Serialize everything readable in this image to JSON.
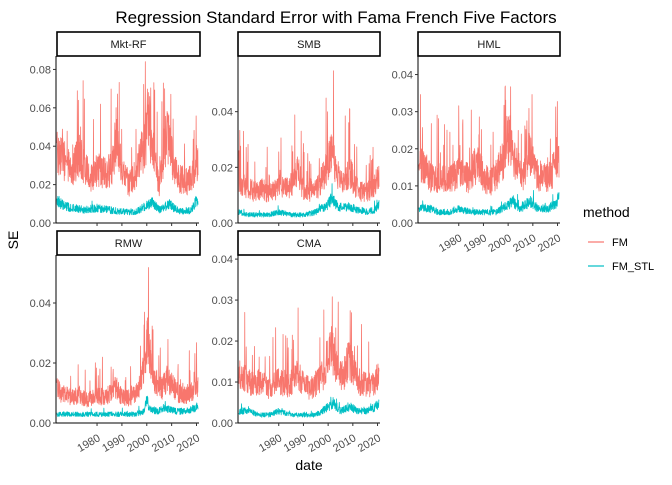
{
  "chart_data": {
    "type": "line",
    "title": "Regression Standard Error with Fama French Five Factors",
    "xlabel": "date",
    "ylabel": "SE",
    "legend": {
      "title": "method",
      "placement": "right",
      "entries": [
        {
          "label": "FM",
          "color": "#F8766D"
        },
        {
          "label": "FM_STL",
          "color": "#00BFC4"
        }
      ]
    },
    "x_ticks": [
      "1980",
      "1990",
      "2000",
      "2010",
      "2020"
    ],
    "xlim": [
      1963.5,
      2021
    ],
    "grid": false,
    "x_label_rotation": "angled",
    "panels": [
      {
        "title": "Mkt-RF",
        "ylim": [
          0,
          0.087
        ],
        "y_ticks": [
          "0.00",
          "0.02",
          "0.04",
          "0.06",
          "0.08"
        ],
        "y_tick_values": [
          0,
          0.02,
          0.04,
          0.06,
          0.08
        ],
        "show_x_axis": false,
        "series": [
          {
            "name": "FM",
            "color": "#F8766D",
            "x": [
              1964,
              1967,
              1970,
              1973,
              1975,
              1978,
              1980,
              1983,
              1986,
              1987.8,
              1990,
              1993,
              1996,
              1998,
              1999.5,
              2000.5,
              2001.5,
              2003,
              2005,
              2008,
              2009,
              2011,
              2013,
              2016,
              2018,
              2020,
              2021
            ],
            "y": [
              0.041,
              0.035,
              0.028,
              0.04,
              0.03,
              0.025,
              0.03,
              0.028,
              0.03,
              0.05,
              0.028,
              0.022,
              0.028,
              0.04,
              0.045,
              0.06,
              0.05,
              0.035,
              0.02,
              0.05,
              0.045,
              0.03,
              0.025,
              0.023,
              0.025,
              0.035,
              0.03
            ]
          },
          {
            "name": "FM_STL",
            "color": "#00BFC4",
            "x": [
              1964,
              1967,
              1970,
              1975,
              1980,
              1985,
              1990,
              1995,
              2000,
              2002,
              2005,
              2009,
              2012,
              2015,
              2018,
              2020,
              2021
            ],
            "y": [
              0.012,
              0.009,
              0.008,
              0.007,
              0.008,
              0.007,
              0.006,
              0.006,
              0.009,
              0.011,
              0.007,
              0.01,
              0.007,
              0.006,
              0.007,
              0.012,
              0.01
            ]
          }
        ]
      },
      {
        "title": "SMB",
        "ylim": [
          0,
          0.06
        ],
        "y_ticks": [
          "0.00",
          "0.02",
          "0.04"
        ],
        "y_tick_values": [
          0,
          0.02,
          0.04
        ],
        "show_x_axis": false,
        "series": [
          {
            "name": "FM",
            "color": "#F8766D",
            "x": [
              1964,
              1967,
              1970,
              1973,
              1976,
              1980,
              1984,
              1987.8,
              1990,
              1993,
              1996,
              1998,
              2000,
              2001.5,
              2003,
              2006,
              2008.5,
              2010,
              2012,
              2015,
              2018,
              2020,
              2021
            ],
            "y": [
              0.017,
              0.014,
              0.012,
              0.013,
              0.011,
              0.014,
              0.013,
              0.02,
              0.013,
              0.012,
              0.014,
              0.018,
              0.024,
              0.028,
              0.02,
              0.015,
              0.02,
              0.017,
              0.013,
              0.012,
              0.013,
              0.017,
              0.016
            ]
          },
          {
            "name": "FM_STL",
            "color": "#00BFC4",
            "x": [
              1964,
              1968,
              1972,
              1976,
              1980,
              1985,
              1990,
              1995,
              2000,
              2001.5,
              2004,
              2008,
              2012,
              2016,
              2019,
              2021
            ],
            "y": [
              0.004,
              0.003,
              0.003,
              0.003,
              0.004,
              0.003,
              0.003,
              0.004,
              0.007,
              0.009,
              0.006,
              0.006,
              0.005,
              0.004,
              0.005,
              0.007
            ]
          }
        ]
      },
      {
        "title": "HML",
        "ylim": [
          0,
          0.045
        ],
        "y_ticks": [
          "0.00",
          "0.01",
          "0.02",
          "0.03",
          "0.04"
        ],
        "y_tick_values": [
          0,
          0.01,
          0.02,
          0.03,
          0.04
        ],
        "show_x_axis": true,
        "series": [
          {
            "name": "FM",
            "color": "#F8766D",
            "x": [
              1964,
              1967,
              1970,
              1973,
              1976,
              1980,
              1984,
              1987.8,
              1990,
              1993,
              1996,
              1998,
              2000,
              2001.5,
              2003,
              2006,
              2008.5,
              2010,
              2012,
              2015,
              2018,
              2020,
              2021
            ],
            "y": [
              0.018,
              0.015,
              0.012,
              0.014,
              0.012,
              0.015,
              0.013,
              0.018,
              0.013,
              0.012,
              0.015,
              0.018,
              0.025,
              0.022,
              0.017,
              0.013,
              0.022,
              0.018,
              0.014,
              0.013,
              0.015,
              0.02,
              0.018
            ]
          },
          {
            "name": "FM_STL",
            "color": "#00BFC4",
            "x": [
              1964,
              1968,
              1972,
              1976,
              1980,
              1985,
              1990,
              1995,
              2000,
              2002,
              2005,
              2009,
              2012,
              2016,
              2019,
              2021
            ],
            "y": [
              0.004,
              0.004,
              0.003,
              0.003,
              0.004,
              0.003,
              0.003,
              0.003,
              0.005,
              0.006,
              0.004,
              0.006,
              0.004,
              0.004,
              0.005,
              0.008
            ]
          }
        ]
      },
      {
        "title": "RMW",
        "ylim": [
          0,
          0.056
        ],
        "y_ticks": [
          "0.00",
          "0.02",
          "0.04"
        ],
        "y_tick_values": [
          0,
          0.02,
          0.04
        ],
        "show_x_axis": true,
        "series": [
          {
            "name": "FM",
            "color": "#F8766D",
            "x": [
              1964,
              1967,
              1970,
              1973,
              1976,
              1980,
              1984,
              1987.8,
              1990,
              1993,
              1996,
              1998,
              1999.5,
              2000.5,
              2001.5,
              2003,
              2006,
              2008.5,
              2010,
              2012,
              2015,
              2018,
              2020,
              2021
            ],
            "y": [
              0.012,
              0.01,
              0.009,
              0.01,
              0.008,
              0.01,
              0.009,
              0.013,
              0.009,
              0.009,
              0.011,
              0.015,
              0.025,
              0.03,
              0.022,
              0.016,
              0.012,
              0.016,
              0.014,
              0.011,
              0.01,
              0.011,
              0.014,
              0.013
            ]
          },
          {
            "name": "FM_STL",
            "color": "#00BFC4",
            "x": [
              1964,
              1968,
              1972,
              1976,
              1980,
              1985,
              1990,
              1995,
              1999,
              2000,
              2001,
              2004,
              2008,
              2012,
              2016,
              2019,
              2021
            ],
            "y": [
              0.003,
              0.003,
              0.003,
              0.003,
              0.003,
              0.003,
              0.003,
              0.003,
              0.004,
              0.008,
              0.005,
              0.004,
              0.005,
              0.004,
              0.004,
              0.005,
              0.006
            ]
          }
        ]
      },
      {
        "title": "CMA",
        "ylim": [
          0,
          0.041
        ],
        "y_ticks": [
          "0.00",
          "0.01",
          "0.02",
          "0.03",
          "0.04"
        ],
        "y_tick_values": [
          0,
          0.01,
          0.02,
          0.03,
          0.04
        ],
        "show_x_axis": true,
        "series": [
          {
            "name": "FM",
            "color": "#F8766D",
            "x": [
              1964,
              1967,
              1970,
              1973,
              1976,
              1980,
              1984,
              1987.8,
              1990,
              1993,
              1996,
              1998,
              2000,
              2001.5,
              2003,
              2006,
              2008.5,
              2010,
              2012,
              2015,
              2018,
              2020,
              2021
            ],
            "y": [
              0.013,
              0.011,
              0.01,
              0.011,
              0.009,
              0.011,
              0.01,
              0.013,
              0.01,
              0.009,
              0.011,
              0.013,
              0.018,
              0.02,
              0.016,
              0.012,
              0.017,
              0.014,
              0.011,
              0.01,
              0.01,
              0.012,
              0.011
            ]
          },
          {
            "name": "FM_STL",
            "color": "#00BFC4",
            "x": [
              1964,
              1968,
              1972,
              1976,
              1980,
              1985,
              1990,
              1995,
              2000,
              2002,
              2005,
              2009,
              2012,
              2016,
              2019,
              2021
            ],
            "y": [
              0.003,
              0.003,
              0.002,
              0.002,
              0.003,
              0.002,
              0.002,
              0.002,
              0.004,
              0.005,
              0.003,
              0.004,
              0.003,
              0.003,
              0.004,
              0.005
            ]
          }
        ]
      }
    ]
  }
}
